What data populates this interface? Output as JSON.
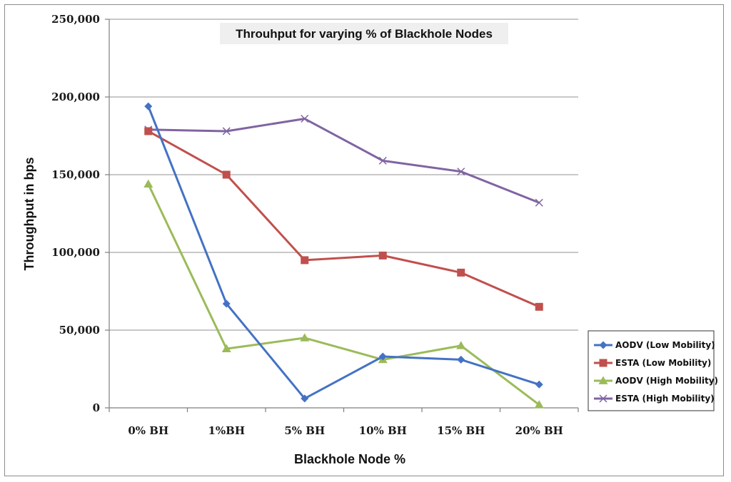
{
  "chart_data": {
    "type": "line",
    "title": "Throuhput for varying % of Blackhole Nodes",
    "xlabel": "Blackhole Node %",
    "ylabel": "Throughput in bps",
    "categories": [
      "0% BH",
      "1%BH",
      "5% BH",
      "10% BH",
      "15% BH",
      "20% BH"
    ],
    "ylim": [
      0,
      250000
    ],
    "yticks": [
      0,
      50000,
      100000,
      150000,
      200000,
      250000
    ],
    "ytick_labels": [
      "0",
      "50,000",
      "100,000",
      "150,000",
      "200,000",
      "250,000"
    ],
    "grid": true,
    "legend_position": "bottom-right",
    "series": [
      {
        "name": "AODV (Low Mobility)",
        "color": "#4472c4",
        "marker": "diamond",
        "values": [
          194000,
          67000,
          6000,
          33000,
          31000,
          15000
        ]
      },
      {
        "name": "ESTA (Low Mobility)",
        "color": "#c0504d",
        "marker": "square",
        "values": [
          178000,
          150000,
          95000,
          98000,
          87000,
          65000
        ]
      },
      {
        "name": "AODV (High Mobility)",
        "color": "#9bbb59",
        "marker": "triangle",
        "values": [
          144000,
          38000,
          45000,
          31000,
          40000,
          2000
        ]
      },
      {
        "name": "ESTA (High Mobility)",
        "color": "#8064a2",
        "marker": "x",
        "values": [
          179000,
          178000,
          186000,
          159000,
          152000,
          132000
        ]
      }
    ]
  }
}
